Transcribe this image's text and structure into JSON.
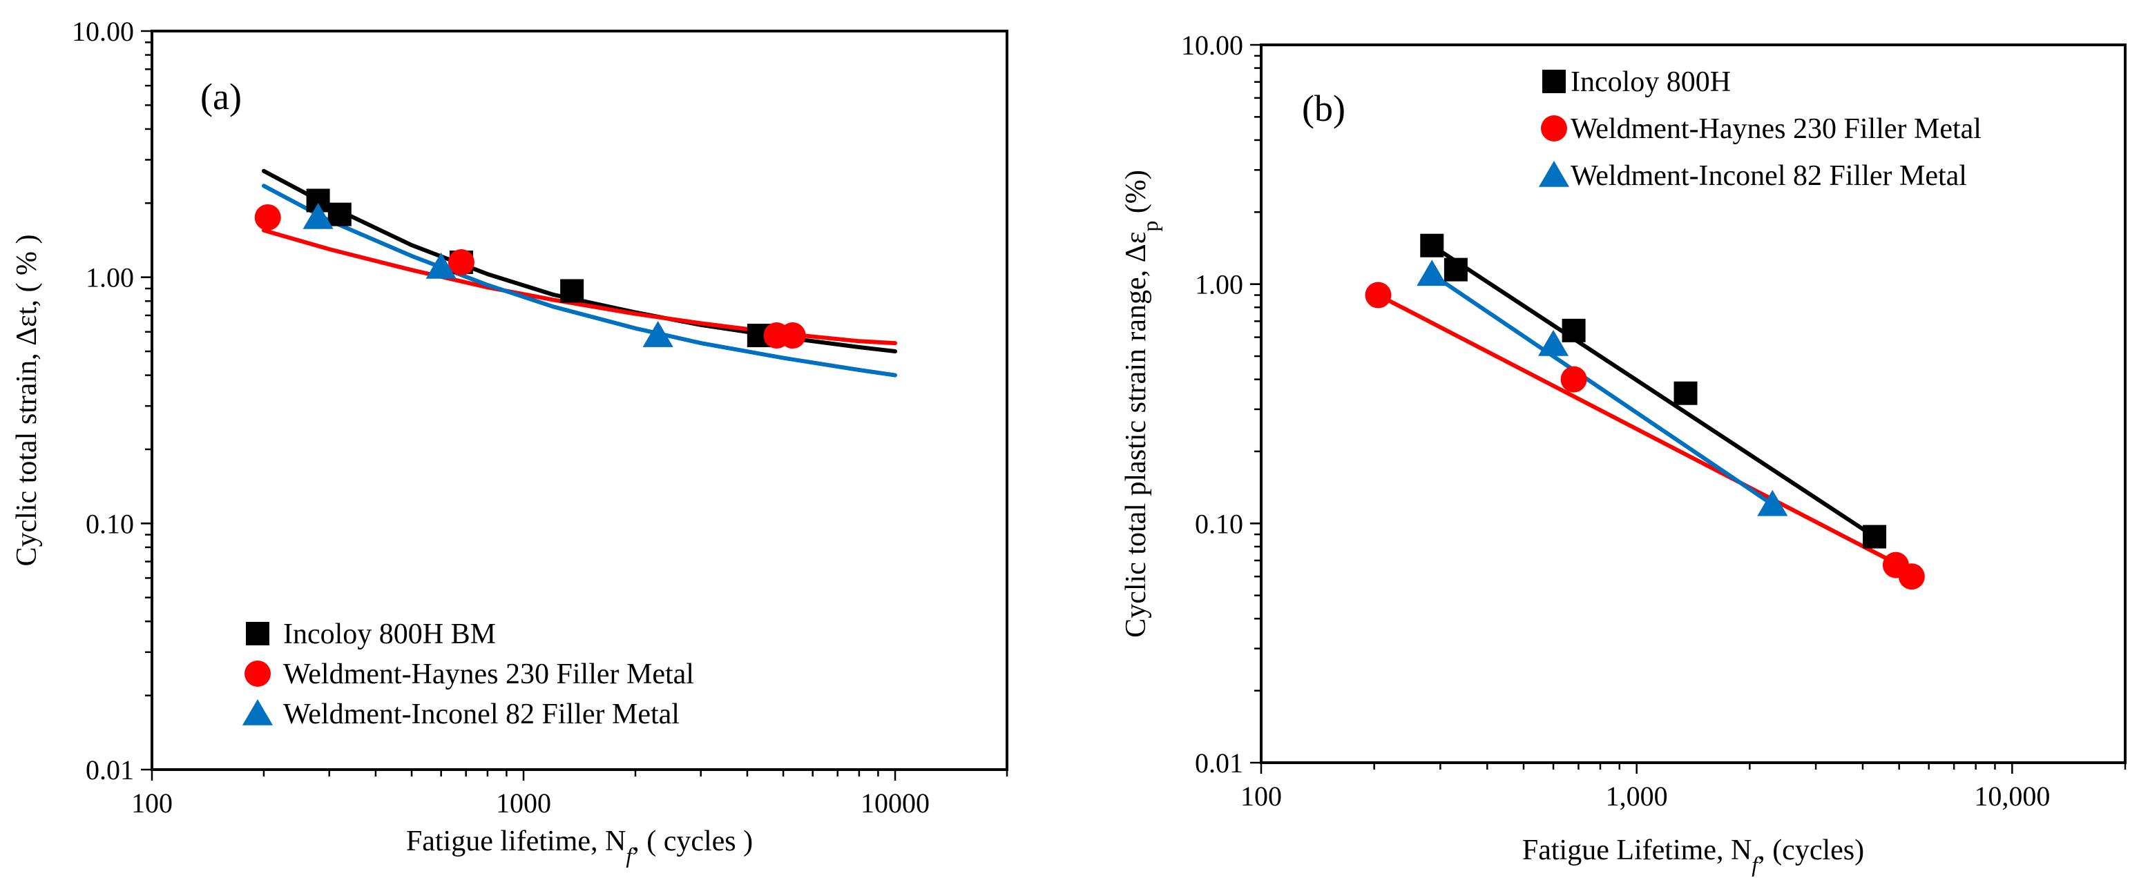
{
  "chart_data": [
    {
      "type": "scatter",
      "panel_label": "(a)",
      "x_scale": "log",
      "y_scale": "log",
      "xlim": [
        100,
        20000
      ],
      "ylim": [
        0.01,
        10
      ],
      "xticks": [
        100,
        1000,
        10000
      ],
      "xtick_labels": [
        "100",
        "1000",
        "10000"
      ],
      "yticks": [
        0.01,
        0.1,
        1,
        10
      ],
      "ytick_labels": [
        "0.01",
        "0.10",
        "1.00",
        "10.00"
      ],
      "xlabel": {
        "pre": "Fatigue lifetime,  N",
        "sub": "f",
        "post": ", ( cycles )"
      },
      "ylabel": {
        "text": "Cyclic total strain,  Δεt, ( % )"
      },
      "legend_position": "bottom-left",
      "series": [
        {
          "name": "Incoloy 800H BM",
          "color": "#000000",
          "marker": "square",
          "x": [
            280,
            320,
            680,
            1350,
            4300
          ],
          "y": [
            2.05,
            1.8,
            1.15,
            0.88,
            0.58
          ],
          "fit": {
            "x": [
              200,
              300,
              500,
              800,
              1200,
              2000,
              3000,
              5000,
              8000,
              10000
            ],
            "y": [
              2.7,
              1.95,
              1.35,
              1.03,
              0.85,
              0.72,
              0.64,
              0.57,
              0.52,
              0.5
            ]
          }
        },
        {
          "name": "Weldment-Haynes 230 Filler Metal",
          "color": "#ff0000",
          "marker": "circle",
          "x": [
            205,
            680,
            4800,
            5300
          ],
          "y": [
            1.75,
            1.15,
            0.58,
            0.58
          ],
          "fit": {
            "x": [
              200,
              300,
              500,
              800,
              1200,
              2000,
              3000,
              5000,
              8000,
              10000
            ],
            "y": [
              1.55,
              1.3,
              1.07,
              0.91,
              0.81,
              0.71,
              0.65,
              0.59,
              0.55,
              0.54
            ]
          }
        },
        {
          "name": "Weldment-Inconel 82 Filler Metal",
          "color": "#0070c0",
          "marker": "triangle",
          "x": [
            280,
            600,
            2300
          ],
          "y": [
            1.75,
            1.1,
            0.58
          ],
          "fit": {
            "x": [
              200,
              300,
              500,
              800,
              1200,
              2000,
              3000,
              5000,
              8000,
              10000
            ],
            "y": [
              2.35,
              1.7,
              1.22,
              0.93,
              0.76,
              0.62,
              0.54,
              0.47,
              0.42,
              0.4
            ]
          }
        }
      ]
    },
    {
      "type": "scatter",
      "panel_label": "(b)",
      "x_scale": "log",
      "y_scale": "log",
      "xlim": [
        100,
        20000
      ],
      "ylim": [
        0.01,
        10
      ],
      "xticks": [
        100,
        1000,
        10000
      ],
      "xtick_labels": [
        "100",
        "1,000",
        "10,000"
      ],
      "yticks": [
        0.01,
        0.1,
        1,
        10
      ],
      "ytick_labels": [
        "0.01",
        "0.10",
        "1.00",
        "10.00"
      ],
      "xlabel": {
        "pre": "Fatigue Lifetime,  N",
        "sub": "f",
        "post": ",  (cycles)"
      },
      "ylabel": {
        "pre": "Cyclic total plastic strain range,  Δε",
        "sub": "p",
        "post": " (%)"
      },
      "legend_position": "top-left",
      "series": [
        {
          "name": "Incoloy 800H",
          "color": "#000000",
          "marker": "square",
          "x": [
            285,
            330,
            680,
            1350,
            4300
          ],
          "y": [
            1.45,
            1.15,
            0.64,
            0.35,
            0.088
          ],
          "fit": {
            "x": [
              285,
              4300
            ],
            "y": [
              1.45,
              0.088
            ]
          }
        },
        {
          "name": "Weldment-Haynes 230 Filler Metal",
          "color": "#ff0000",
          "marker": "circle",
          "x": [
            205,
            680,
            4900,
            5400
          ],
          "y": [
            0.9,
            0.4,
            0.067,
            0.06
          ],
          "fit": {
            "x": [
              205,
              5000
            ],
            "y": [
              0.9,
              0.067
            ]
          }
        },
        {
          "name": "Weldment-Inconel 82 Filler Metal",
          "color": "#0070c0",
          "marker": "triangle",
          "x": [
            285,
            600,
            2300
          ],
          "y": [
            1.1,
            0.56,
            0.12
          ],
          "fit": {
            "x": [
              285,
              2300
            ],
            "y": [
              1.1,
              0.12
            ]
          }
        }
      ]
    }
  ]
}
